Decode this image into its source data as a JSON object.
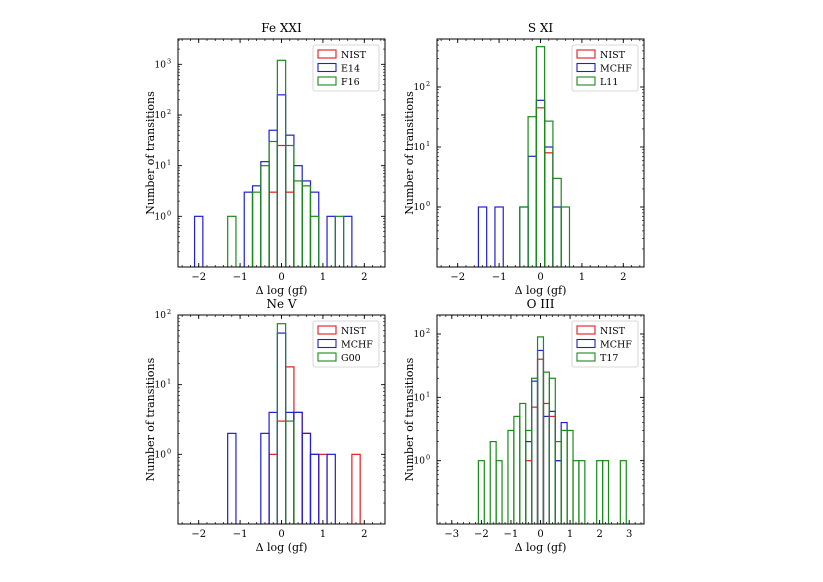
{
  "colors": {
    "nist": "#e8191c",
    "second": "#1f1fd6",
    "third": "#1a8a1a"
  },
  "chart_data": [
    {
      "type": "histogram",
      "title": "Fe XXI",
      "xlabel": "Δ log (gf)",
      "ylabel": "Number of transitions",
      "xlim": [
        -2.5,
        2.5
      ],
      "xticks": [
        -2,
        -1,
        0,
        1,
        2
      ],
      "xtick_labels": [
        "−2",
        "−1",
        "0",
        "1",
        "2"
      ],
      "ylim_log10": [
        -1,
        3.5
      ],
      "yticks_exp": [
        0,
        1,
        2,
        3
      ],
      "ytick_labels": [
        "10",
        "10",
        "10",
        "10"
      ],
      "ytick_sups": [
        "0",
        "1",
        "2",
        "3"
      ],
      "bin_width": 0.2,
      "legend": [
        "NIST",
        "E14",
        "F16"
      ],
      "series": [
        {
          "name": "NIST",
          "color": "#e8191c",
          "bins": [
            [
              -0.3,
              3
            ],
            [
              -0.1,
              25
            ],
            [
              0.1,
              3
            ]
          ]
        },
        {
          "name": "E14",
          "color": "#1f1fd6",
          "bins": [
            [
              -2.1,
              1
            ],
            [
              -0.9,
              3
            ],
            [
              -0.7,
              4
            ],
            [
              -0.5,
              12
            ],
            [
              -0.3,
              50
            ],
            [
              -0.1,
              250
            ],
            [
              0.1,
              40
            ],
            [
              0.3,
              10
            ],
            [
              0.5,
              5
            ],
            [
              0.7,
              3
            ],
            [
              1.1,
              1
            ],
            [
              1.5,
              1
            ]
          ]
        },
        {
          "name": "F16",
          "color": "#1a8a1a",
          "bins": [
            [
              -1.3,
              1
            ],
            [
              -0.7,
              3
            ],
            [
              -0.5,
              10
            ],
            [
              -0.3,
              30
            ],
            [
              -0.1,
              1200
            ],
            [
              0.1,
              25
            ],
            [
              0.3,
              5
            ],
            [
              0.5,
              4
            ],
            [
              0.7,
              1
            ],
            [
              1.3,
              1
            ]
          ]
        }
      ]
    },
    {
      "type": "histogram",
      "title": "S XI",
      "xlabel": "Δ log (gf)",
      "ylabel": "Number of transitions",
      "xlim": [
        -2.5,
        2.5
      ],
      "xticks": [
        -2,
        -1,
        0,
        1,
        2
      ],
      "xtick_labels": [
        "−2",
        "−1",
        "0",
        "1",
        "2"
      ],
      "ylim_log10": [
        -1,
        2.8
      ],
      "yticks_exp": [
        0,
        1,
        2
      ],
      "ytick_labels": [
        "10",
        "10",
        "10"
      ],
      "ytick_sups": [
        "0",
        "1",
        "2"
      ],
      "bin_width": 0.2,
      "legend": [
        "NIST",
        "MCHF",
        "L11"
      ],
      "series": [
        {
          "name": "NIST",
          "color": "#e8191c",
          "bins": [
            [
              -0.1,
              45
            ],
            [
              0.1,
              8
            ]
          ]
        },
        {
          "name": "MCHF",
          "color": "#1f1fd6",
          "bins": [
            [
              -1.5,
              1
            ],
            [
              -1.1,
              1
            ],
            [
              -0.5,
              1
            ],
            [
              -0.3,
              7
            ],
            [
              -0.1,
              60
            ],
            [
              0.1,
              10
            ],
            [
              0.3,
              1
            ]
          ]
        },
        {
          "name": "L11",
          "color": "#1a8a1a",
          "bins": [
            [
              -0.5,
              1
            ],
            [
              -0.3,
              32
            ],
            [
              -0.1,
              470
            ],
            [
              0.1,
              27
            ],
            [
              0.3,
              3
            ],
            [
              0.5,
              1
            ]
          ]
        }
      ]
    },
    {
      "type": "histogram",
      "title": "Ne V",
      "xlabel": "Δ log (gf)",
      "ylabel": "Number of transitions",
      "xlim": [
        -2.5,
        2.5
      ],
      "xticks": [
        -2,
        -1,
        0,
        1,
        2
      ],
      "xtick_labels": [
        "−2",
        "−1",
        "0",
        "1",
        "2"
      ],
      "ylim_log10": [
        -1,
        2
      ],
      "yticks_exp": [
        0,
        1,
        2
      ],
      "ytick_labels": [
        "10",
        "10",
        "10"
      ],
      "ytick_sups": [
        "0",
        "1",
        "2"
      ],
      "bin_width": 0.2,
      "legend": [
        "NIST",
        "MCHF",
        "G00"
      ],
      "series": [
        {
          "name": "NIST",
          "color": "#e8191c",
          "bins": [
            [
              -0.3,
              1
            ],
            [
              -0.1,
              3
            ],
            [
              0.1,
              18
            ],
            [
              0.3,
              4
            ],
            [
              0.5,
              2
            ],
            [
              0.7,
              1
            ],
            [
              0.9,
              1
            ],
            [
              1.7,
              1
            ]
          ]
        },
        {
          "name": "MCHF",
          "color": "#1f1fd6",
          "bins": [
            [
              -1.3,
              2
            ],
            [
              -0.5,
              2
            ],
            [
              -0.3,
              4
            ],
            [
              -0.1,
              55
            ],
            [
              0.1,
              4
            ],
            [
              0.3,
              4
            ],
            [
              0.5,
              2
            ],
            [
              0.7,
              1
            ],
            [
              1.1,
              1
            ]
          ]
        },
        {
          "name": "G00",
          "color": "#1a8a1a",
          "bins": [
            [
              -0.1,
              75
            ],
            [
              0.1,
              3
            ]
          ]
        }
      ]
    },
    {
      "type": "histogram",
      "title": "O III",
      "xlabel": "Δ log (gf)",
      "ylabel": "Number of transitions",
      "xlim": [
        -3.5,
        3.5
      ],
      "xticks": [
        -3,
        -2,
        -1,
        0,
        1,
        2,
        3
      ],
      "xtick_labels": [
        "−3",
        "−2",
        "−1",
        "0",
        "1",
        "2",
        "3"
      ],
      "ylim_log10": [
        -1,
        2.3
      ],
      "yticks_exp": [
        0,
        1,
        2
      ],
      "ytick_labels": [
        "10",
        "10",
        "10"
      ],
      "ytick_sups": [
        "0",
        "1",
        "2"
      ],
      "bin_width": 0.2,
      "legend": [
        "NIST",
        "MCHF",
        "T17"
      ],
      "series": [
        {
          "name": "NIST",
          "color": "#e8191c",
          "bins": [
            [
              -0.5,
              1
            ],
            [
              -0.3,
              7
            ],
            [
              -0.1,
              40
            ],
            [
              0.1,
              8
            ],
            [
              0.3,
              5
            ],
            [
              0.5,
              1
            ]
          ]
        },
        {
          "name": "MCHF",
          "color": "#1f1fd6",
          "bins": [
            [
              -0.5,
              2
            ],
            [
              -0.3,
              18
            ],
            [
              -0.1,
              55
            ],
            [
              0.1,
              5
            ],
            [
              0.3,
              6
            ],
            [
              0.5,
              1
            ],
            [
              0.7,
              4
            ]
          ]
        },
        {
          "name": "T17",
          "color": "#1a8a1a",
          "bins": [
            [
              -2.1,
              1
            ],
            [
              -1.7,
              2
            ],
            [
              -1.5,
              1
            ],
            [
              -1.1,
              3
            ],
            [
              -0.9,
              5
            ],
            [
              -0.7,
              8
            ],
            [
              -0.5,
              3
            ],
            [
              -0.3,
              20
            ],
            [
              -0.1,
              90
            ],
            [
              0.1,
              25
            ],
            [
              0.3,
              20
            ],
            [
              0.5,
              2
            ],
            [
              0.7,
              3
            ],
            [
              0.9,
              3
            ],
            [
              1.1,
              1
            ],
            [
              1.3,
              1
            ],
            [
              1.9,
              1
            ],
            [
              2.1,
              1
            ],
            [
              2.7,
              1
            ]
          ]
        }
      ]
    }
  ]
}
